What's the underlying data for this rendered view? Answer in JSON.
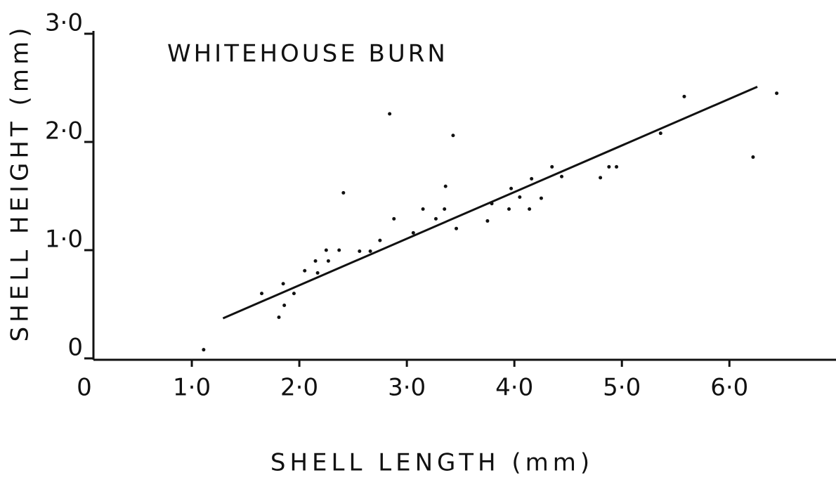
{
  "chart_data": {
    "type": "scatter",
    "title": "WHITEHOUSE   BURN",
    "x_label": "SHELL LENGTH  (mm)",
    "y_label": "SHELL HEIGHT (mm)",
    "xlim": [
      0,
      6.9
    ],
    "ylim": [
      0,
      3
    ],
    "xticks": [
      0,
      {
        "value": 1,
        "label": "1·0"
      },
      {
        "value": 2,
        "label": "2·0"
      },
      {
        "value": 3,
        "label": "3·0"
      },
      {
        "value": 4,
        "label": "4·0"
      },
      {
        "value": 5,
        "label": "5·0"
      },
      {
        "value": 6,
        "label": "6·0"
      }
    ],
    "yticks": [
      0,
      {
        "value": 1,
        "label": "1·0"
      },
      {
        "value": 2,
        "label": "2·0"
      },
      {
        "value": 3,
        "label": "3·0"
      }
    ],
    "color": "#111111",
    "x": [
      1.65,
      1.85,
      1.86,
      1.81,
      1.95,
      2.05,
      2.15,
      2.17,
      2.25,
      2.27,
      2.37,
      2.56,
      2.66,
      2.75,
      2.88,
      3.06,
      3.15,
      3.27,
      3.35,
      3.36,
      3.46,
      3.75,
      3.79,
      3.95,
      3.97,
      4.05,
      4.14,
      4.16,
      4.25,
      4.35,
      4.44,
      4.8,
      4.88,
      4.95,
      5.36,
      5.58,
      6.44,
      2.41,
      2.84,
      3.43,
      6.22,
      1.11
    ],
    "values": [
      0.6,
      0.69,
      0.49,
      0.38,
      0.6,
      0.81,
      0.9,
      0.79,
      1.0,
      0.9,
      1.0,
      0.99,
      0.99,
      1.09,
      1.29,
      1.16,
      1.38,
      1.29,
      1.38,
      1.59,
      1.2,
      1.27,
      1.43,
      1.38,
      1.57,
      1.49,
      1.38,
      1.66,
      1.48,
      1.77,
      1.68,
      1.67,
      1.77,
      1.77,
      2.08,
      2.42,
      2.45,
      1.53,
      2.26,
      2.06,
      1.86,
      0.08
    ],
    "fit": {
      "x": [
        1.29,
        6.26
      ],
      "y": [
        0.37,
        2.51
      ]
    }
  }
}
